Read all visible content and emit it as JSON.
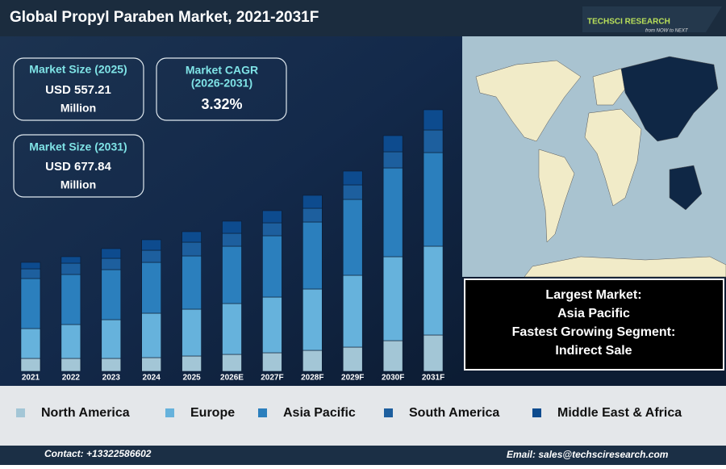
{
  "chart_data": {
    "type": "bar",
    "stacked": true,
    "title": "Global Propyl Paraben Market, 2021-2031F",
    "categories": [
      "2021",
      "2022",
      "2023",
      "2024",
      "2025",
      "2026E",
      "2027F",
      "2028F",
      "2029F",
      "2030F",
      "2031F"
    ],
    "series": [
      {
        "name": "North America",
        "color": "#a3c6d6",
        "values": [
          16,
          16,
          16,
          17,
          19,
          21,
          23,
          26,
          30,
          38,
          45
        ]
      },
      {
        "name": "Europe",
        "color": "#66b2dc",
        "values": [
          37,
          42,
          48,
          55,
          58,
          63,
          69,
          76,
          89,
          104,
          110
        ]
      },
      {
        "name": "Asia Pacific",
        "color": "#2b7fbd",
        "values": [
          62,
          62,
          62,
          63,
          66,
          71,
          76,
          83,
          94,
          110,
          116
        ]
      },
      {
        "name": "South America",
        "color": "#1d5f9e",
        "values": [
          12,
          14,
          14,
          15,
          17,
          16,
          16,
          17,
          18,
          20,
          28
        ]
      },
      {
        "name": "Middle East & Africa",
        "color": "#0d4b8e",
        "values": [
          8,
          8,
          12,
          13,
          13,
          15,
          15,
          16,
          17,
          20,
          25
        ]
      }
    ],
    "ylim": [
      0,
      330
    ]
  },
  "logo": {
    "name": "TECHSCI RESEARCH",
    "tagline": "from NOW to NEXT"
  },
  "cards": [
    {
      "title": "Market Size (2025)",
      "value": "USD 557.21",
      "unit": "Million"
    },
    {
      "title": "Market CAGR",
      "period": "(2026-2031)",
      "value": "3.32%"
    },
    {
      "title": "Market Size (2031)",
      "value": "USD 677.84",
      "unit": "Million"
    }
  ],
  "highlights": [
    "Largest Market:",
    "Asia Pacific",
    "Fastest Growing Segment:",
    "Indirect Sale"
  ],
  "footer": {
    "contact": "Contact: +13322586602",
    "email": "Email: sales@techsciresearch.com"
  }
}
